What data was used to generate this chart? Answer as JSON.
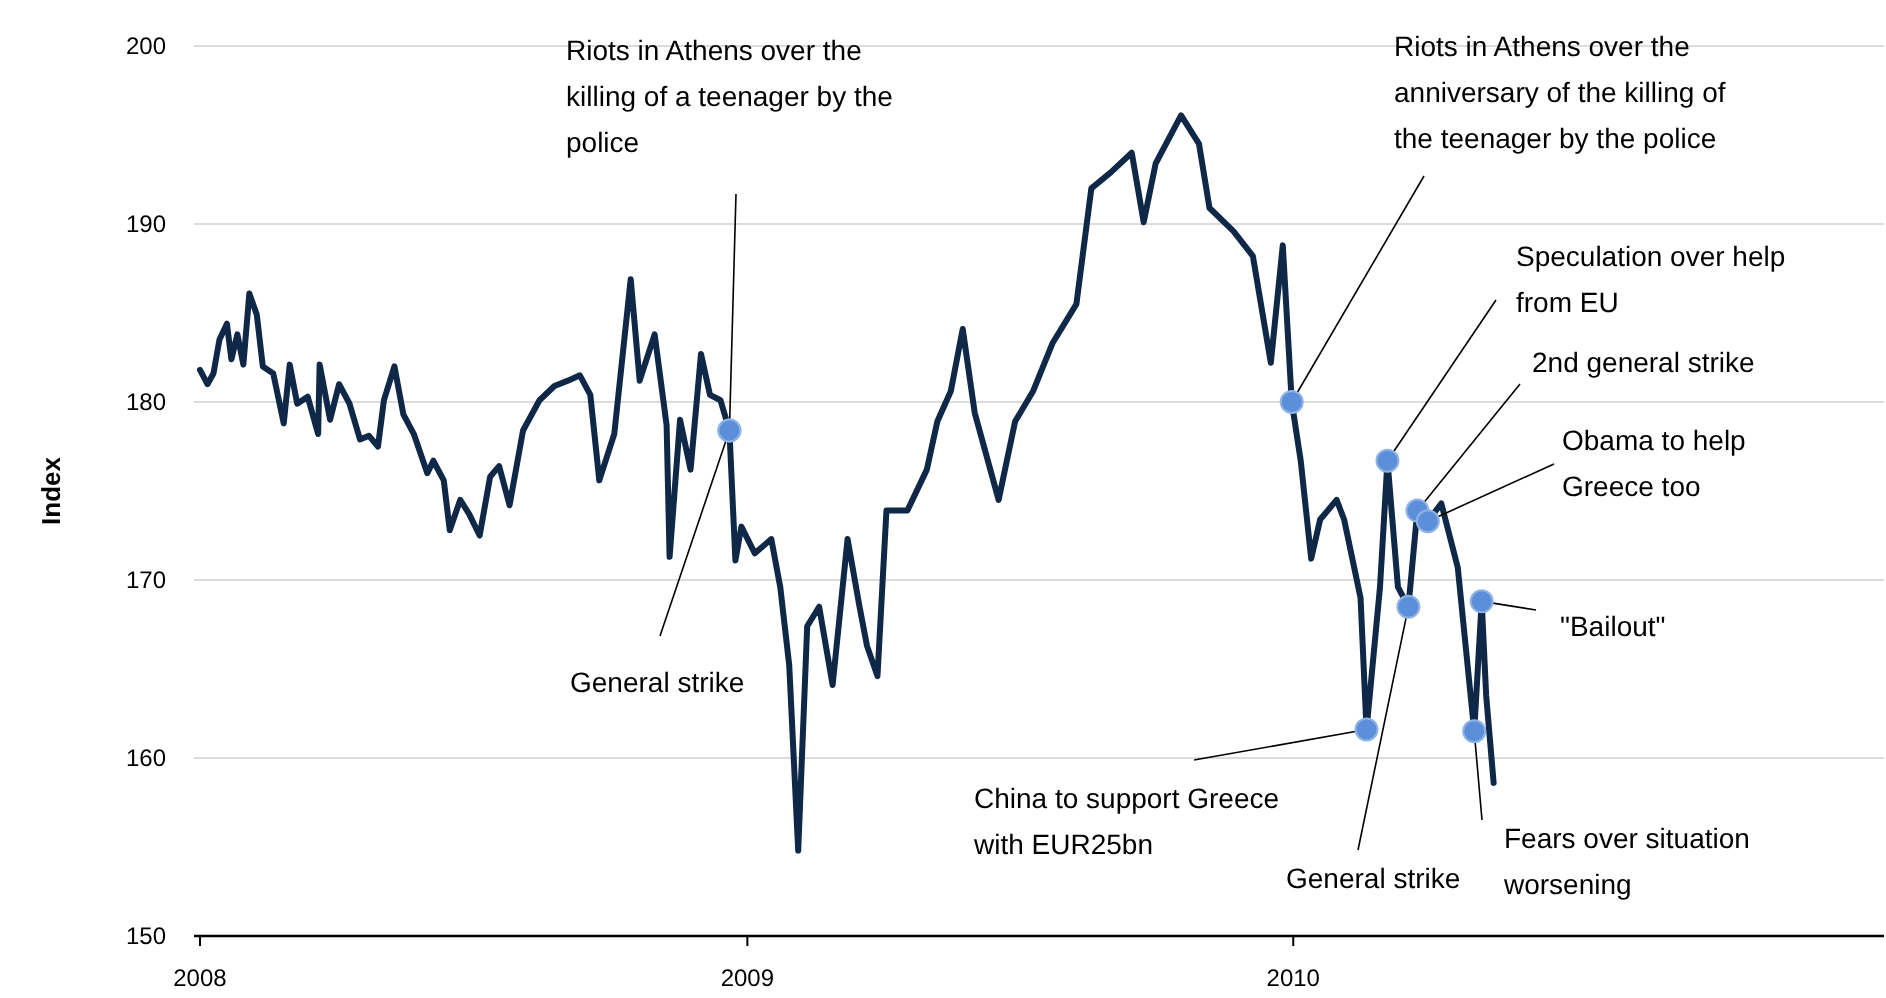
{
  "chart_data": {
    "type": "line",
    "ylabel": "Index",
    "xlim": [
      "2007-12-28",
      "2011-01-31"
    ],
    "xticks": [
      {
        "value": "2008-01-01",
        "label": "2008"
      },
      {
        "value": "2009-01-01",
        "label": "2009"
      },
      {
        "value": "2010-01-01",
        "label": "2010"
      }
    ],
    "ylim": [
      150,
      200
    ],
    "yticks": [
      150,
      160,
      170,
      180,
      190,
      200
    ],
    "grid": "y",
    "marker": "none",
    "line_style": "solid",
    "x": [
      "2008-01-01",
      "2008-01-06",
      "2008-01-10",
      "2008-01-14",
      "2008-01-19",
      "2008-01-22",
      "2008-01-26",
      "2008-01-30",
      "2008-02-03",
      "2008-02-08",
      "2008-02-12",
      "2008-02-19",
      "2008-02-26",
      "2008-03-01",
      "2008-03-06",
      "2008-03-13",
      "2008-03-20",
      "2008-03-21",
      "2008-03-28",
      "2008-04-03",
      "2008-04-10",
      "2008-04-17",
      "2008-04-23",
      "2008-04-29",
      "2008-05-03",
      "2008-05-10",
      "2008-05-16",
      "2008-05-23",
      "2008-06-01",
      "2008-06-05",
      "2008-06-12",
      "2008-06-16",
      "2008-06-23",
      "2008-06-29",
      "2008-07-06",
      "2008-07-13",
      "2008-07-19",
      "2008-07-26",
      "2008-08-04",
      "2008-08-15",
      "2008-08-25",
      "2008-09-03",
      "2008-09-11",
      "2008-09-18",
      "2008-09-24",
      "2008-10-04",
      "2008-10-15",
      "2008-10-21",
      "2008-10-31",
      "2008-11-08",
      "2008-11-10",
      "2008-11-17",
      "2008-11-24",
      "2008-12-01",
      "2008-12-07",
      "2008-12-14",
      "2008-12-20",
      "2008-12-24",
      "2008-12-28",
      "2009-01-06",
      "2009-01-17",
      "2009-01-23",
      "2009-01-29",
      "2009-02-04",
      "2009-02-10",
      "2009-02-18",
      "2009-02-27",
      "2009-03-09",
      "2009-03-17",
      "2009-03-22",
      "2009-03-29",
      "2009-04-04",
      "2009-04-18",
      "2009-05-01",
      "2009-05-08",
      "2009-05-17",
      "2009-05-25",
      "2009-06-02",
      "2009-06-18",
      "2009-06-29",
      "2009-07-11",
      "2009-07-24",
      "2009-08-09",
      "2009-08-19",
      "2009-09-01",
      "2009-09-15",
      "2009-09-23",
      "2009-10-01",
      "2009-10-18",
      "2009-10-30",
      "2009-11-06",
      "2009-11-22",
      "2009-12-05",
      "2009-12-17",
      "2009-12-25",
      "2009-12-31",
      "2010-01-06",
      "2010-01-13",
      "2010-01-19",
      "2010-01-30",
      "2010-02-04",
      "2010-02-15",
      "2010-02-19",
      "2010-02-28",
      "2010-03-05",
      "2010-03-12",
      "2010-03-19",
      "2010-03-25",
      "2010-04-01",
      "2010-04-10",
      "2010-04-21",
      "2010-05-02",
      "2010-05-07",
      "2010-05-10",
      "2010-05-15"
    ],
    "series": [
      {
        "color": "#0f2847",
        "values": [
          181.8,
          181,
          181.6,
          183.5,
          184.4,
          182.4,
          183.8,
          182.1,
          186.1,
          184.9,
          182,
          181.6,
          178.8,
          182.1,
          179.9,
          180.3,
          178.2,
          182.1,
          179,
          181,
          179.9,
          177.9,
          178.1,
          177.5,
          180.1,
          182,
          179.3,
          178.2,
          176,
          176.7,
          175.6,
          172.8,
          174.5,
          173.7,
          172.5,
          175.8,
          176.4,
          174.2,
          178.4,
          180.1,
          180.9,
          181.2,
          181.5,
          180.4,
          175.6,
          178.2,
          186.9,
          181.2,
          183.8,
          178.7,
          171.3,
          179,
          176.2,
          182.7,
          180.4,
          180.1,
          178.4,
          171.1,
          173,
          171.5,
          172.3,
          169.6,
          165.2,
          154.8,
          167.4,
          168.5,
          164.1,
          172.3,
          168.5,
          166.3,
          164.6,
          173.9,
          173.9,
          176.2,
          178.9,
          180.6,
          184.1,
          179.4,
          174.5,
          178.9,
          180.6,
          183.3,
          185.5,
          192,
          192.9,
          194,
          190.1,
          193.4,
          196.1,
          194.5,
          190.9,
          189.6,
          188.2,
          182.2,
          188.8,
          180,
          176.7,
          171.2,
          173.4,
          174.5,
          173.4,
          169,
          161.6,
          169.6,
          176.7,
          169.6,
          168.5,
          173.9,
          173.3,
          174.3,
          170.7,
          161.5,
          168.8,
          163.5,
          158.6
        ]
      }
    ],
    "annotations": [
      {
        "text": "Riots in Athens over the\nkilling of a teenager by the\npolice",
        "x": "2008-12-20",
        "y": 178.4
      },
      {
        "text": "General strike",
        "x": "2008-12-20",
        "y": 178.4
      },
      {
        "text": "Riots in Athens over the\nanniversary of the killing of\nthe teenager by the police",
        "x": "2009-12-31",
        "y": 180
      },
      {
        "text": "Speculation over help\nfrom EU",
        "x": "2010-03-05",
        "y": 176.7
      },
      {
        "text": "2nd general strike",
        "x": "2010-03-25",
        "y": 173.9
      },
      {
        "text": "Obama to help\nGreece too",
        "x": "2010-04-01",
        "y": 173.3
      },
      {
        "text": "\"Bailout\"",
        "x": "2010-05-07",
        "y": 168.8
      },
      {
        "text": "China to support Greece\nwith EUR25bn",
        "x": "2010-02-19",
        "y": 161.6
      },
      {
        "text": "General strike",
        "x": "2010-03-19",
        "y": 168.5
      },
      {
        "text": "Fears over situation\nworsening",
        "x": "2010-05-02",
        "y": 161.5
      }
    ]
  }
}
